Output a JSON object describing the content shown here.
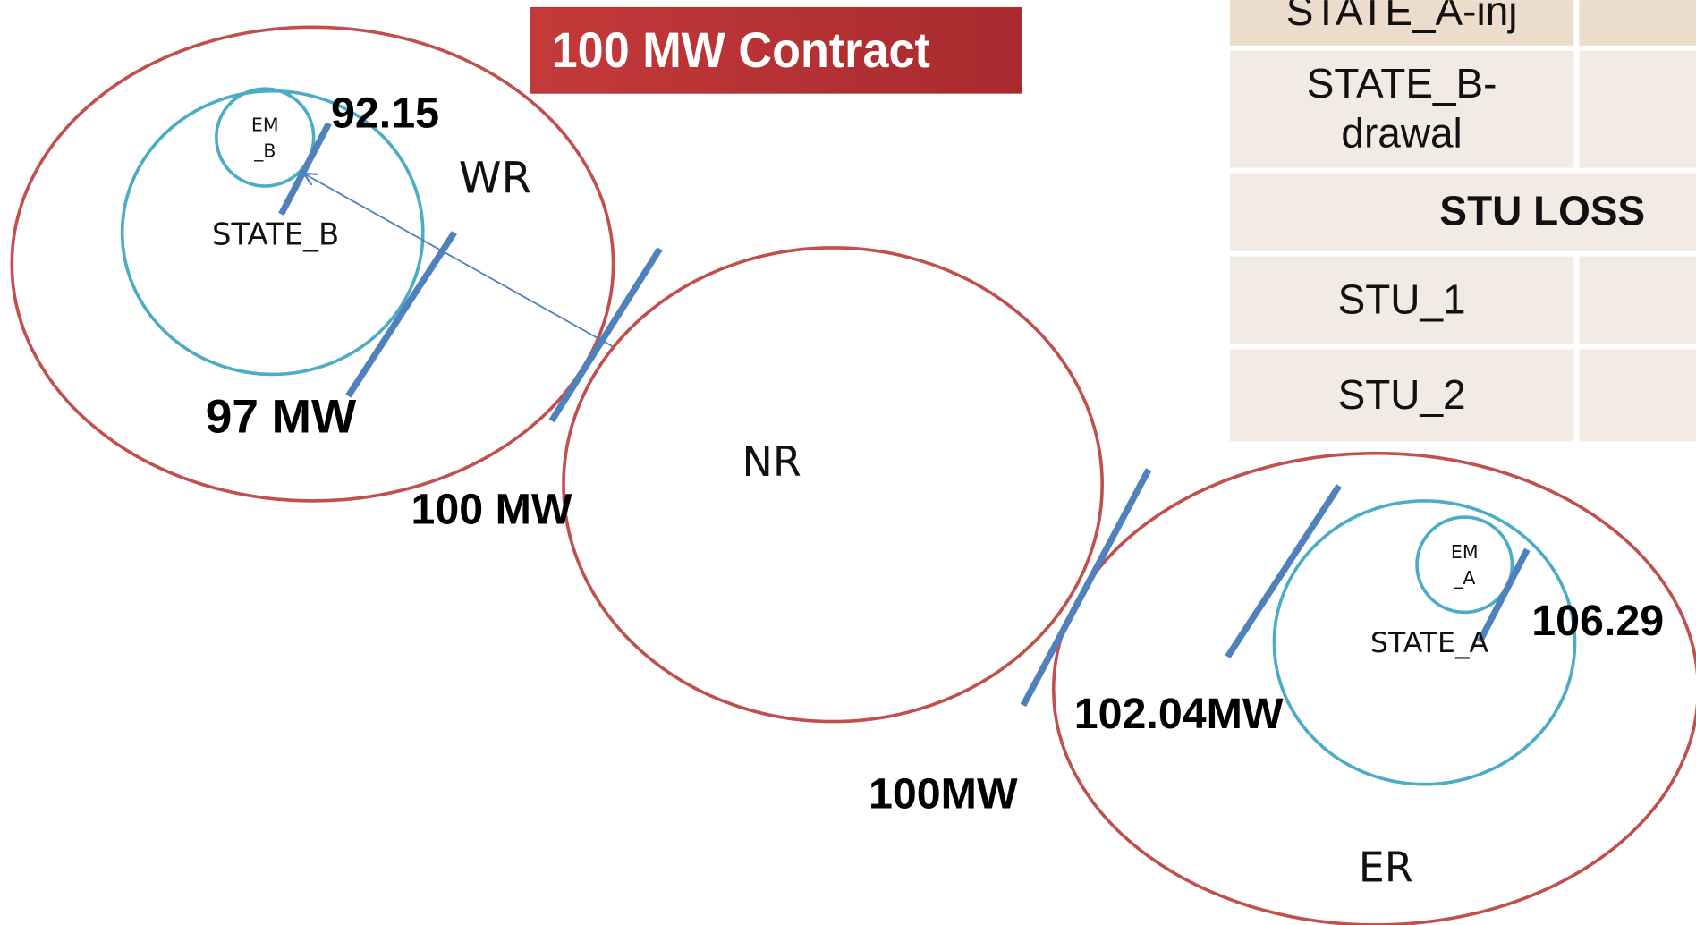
{
  "title": "100 MW Contract",
  "regions": [
    {
      "label": "WR"
    },
    {
      "label": "NR"
    },
    {
      "label": "ER"
    }
  ],
  "states": [
    {
      "label": "STATE_B",
      "meter": [
        "EM",
        "_B"
      ]
    },
    {
      "label": "STATE_A",
      "meter": [
        "EM",
        "_A"
      ]
    }
  ],
  "flows": [
    "92.15",
    "97 MW",
    "100 MW",
    "100MW",
    "102.04MW",
    "106.29"
  ],
  "table": {
    "rows": [
      [
        "STATE_A-inj"
      ],
      [
        "STATE_B-",
        "drawal"
      ],
      [
        "STU LOSS"
      ],
      [
        "STU_1"
      ],
      [
        "STU_2"
      ]
    ]
  }
}
